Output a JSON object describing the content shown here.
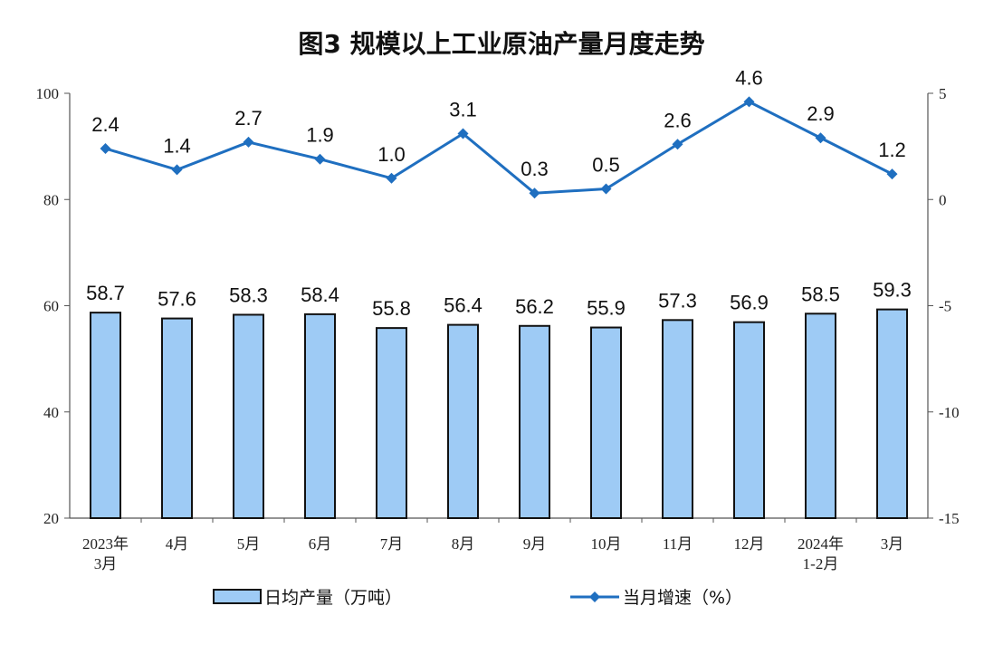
{
  "chart_data": {
    "type": "bar+line",
    "title": "图3  规模以上工业原油产量月度走势",
    "categories": [
      [
        "2023年",
        "3月"
      ],
      [
        "4月"
      ],
      [
        "5月"
      ],
      [
        "6月"
      ],
      [
        "7月"
      ],
      [
        "8月"
      ],
      [
        "9月"
      ],
      [
        "10月"
      ],
      [
        "11月"
      ],
      [
        "12月"
      ],
      [
        "2024年",
        "1-2月"
      ],
      [
        "3月"
      ]
    ],
    "left_axis": {
      "ylim": [
        20,
        100
      ],
      "ticks": [
        20,
        40,
        60,
        80,
        100
      ]
    },
    "right_axis": {
      "ylim": [
        -15,
        5
      ],
      "ticks": [
        -15,
        -10,
        -5,
        0,
        5
      ]
    },
    "grid": false,
    "legend_placement": "bottom",
    "series": [
      {
        "name": "日均产量（万吨）",
        "type": "bar",
        "axis": "left",
        "color": "#9ecbf5",
        "values": [
          58.7,
          57.6,
          58.3,
          58.4,
          55.8,
          56.4,
          56.2,
          55.9,
          57.3,
          56.9,
          58.5,
          59.3
        ]
      },
      {
        "name": "当月增速（%）",
        "type": "line",
        "axis": "right",
        "color": "#1f6fc0",
        "values": [
          2.4,
          1.4,
          2.7,
          1.9,
          1.0,
          3.1,
          0.3,
          0.5,
          2.6,
          4.6,
          2.9,
          1.2
        ]
      }
    ]
  }
}
